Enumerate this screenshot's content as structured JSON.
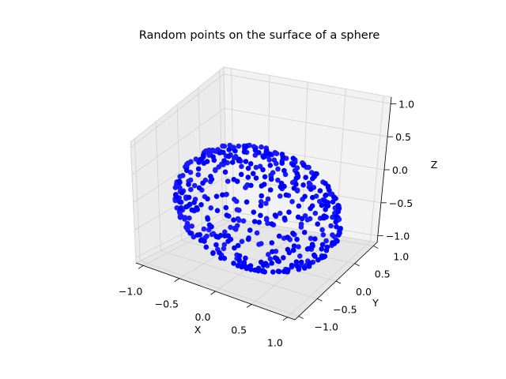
{
  "chart_data": {
    "type": "scatter3d",
    "title": "Random points on the surface of a sphere",
    "xlabel": "X",
    "ylabel": "Y",
    "zlabel": "Z",
    "xlim": [
      -1.1,
      1.1
    ],
    "ylim": [
      -1.1,
      1.1
    ],
    "zlim": [
      -1.1,
      1.1
    ],
    "xticks": [
      "−1.0",
      "−0.5",
      "0.0",
      "0.5",
      "1.0"
    ],
    "yticks": [
      "−1.0",
      "−0.5",
      "0.0",
      "0.5",
      "1.0"
    ],
    "zticks": [
      "−1.0",
      "−0.5",
      "0.0",
      "0.5",
      "1.0"
    ],
    "point_count": 500,
    "radius": 1.0,
    "marker_color": "#0000ff",
    "grid": true,
    "pane_color": "#f2f2f2"
  }
}
